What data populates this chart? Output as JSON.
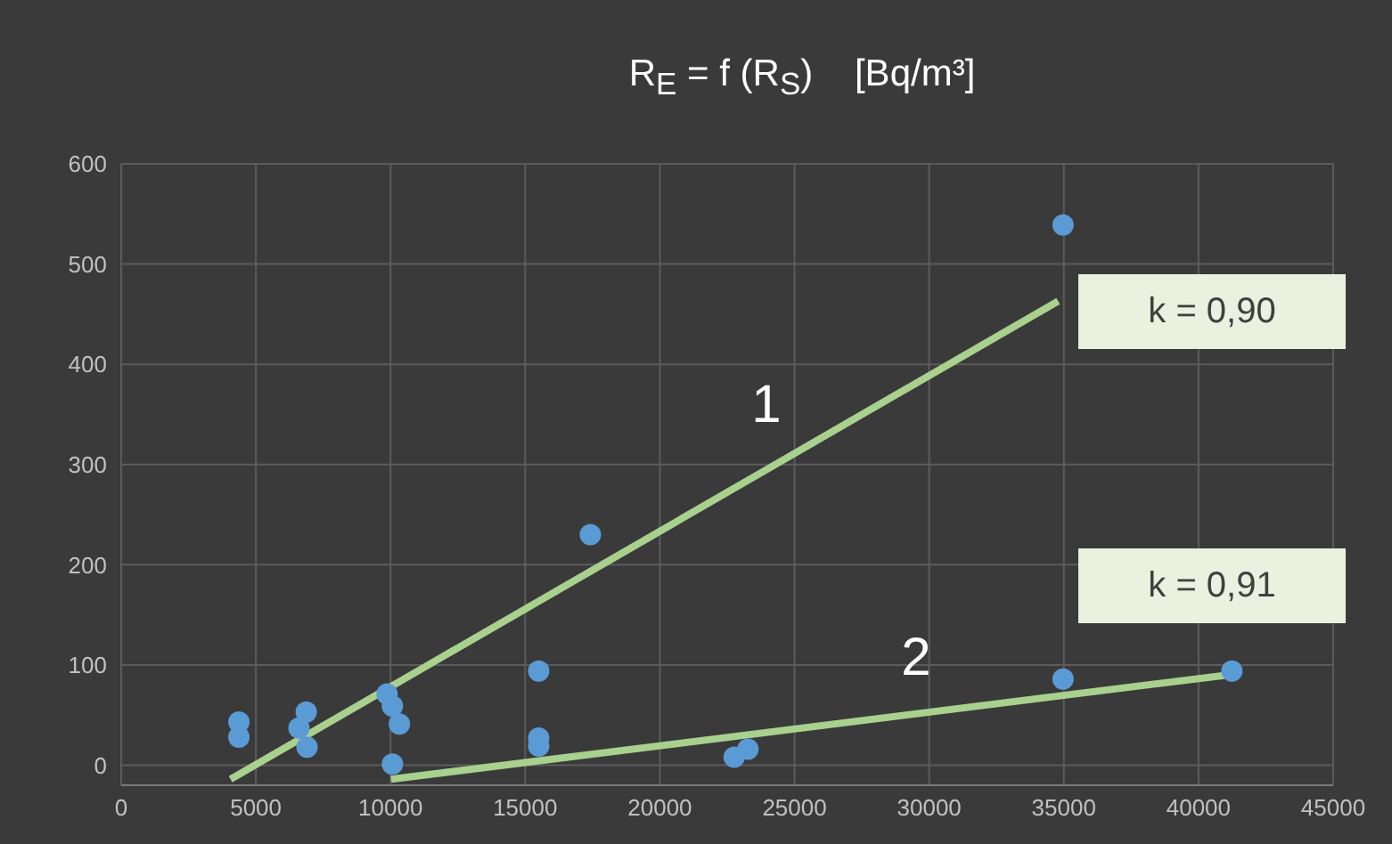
{
  "chart_data": {
    "type": "scatter",
    "title": "R$_{E}$ = f (R$_{S}$)    [Bq/m³]",
    "xlim": [
      0,
      45000
    ],
    "xticks": [
      0,
      5000,
      10000,
      15000,
      20000,
      25000,
      30000,
      35000,
      40000,
      45000
    ],
    "ylim": [
      -20,
      600
    ],
    "yticks": [
      0,
      100,
      200,
      300,
      400,
      500,
      600
    ],
    "grid": true,
    "series": [
      {
        "color": "#5b9bd5",
        "x": [
          4370,
          4370,
          6870,
          6600,
          6900,
          9870,
          10070,
          10330,
          10070,
          15500,
          15500,
          15500,
          17420,
          22760,
          23270,
          34970,
          34970,
          41240
        ],
        "values": [
          43,
          28,
          53,
          37,
          18,
          71,
          59,
          41,
          1,
          94,
          27,
          19,
          230,
          8,
          16,
          539,
          86,
          94
        ]
      },
      {
        "type": "line",
        "color": "#a9d18e",
        "x": [
          4060,
          34790
        ],
        "values": [
          -14,
          463
        ]
      },
      {
        "type": "line",
        "color": "#a9d18e",
        "x": [
          10020,
          41080
        ],
        "values": [
          -14,
          90
        ]
      }
    ],
    "annotations": [
      "1",
      "2",
      "k = 0,90",
      "k = 0,91"
    ]
  }
}
